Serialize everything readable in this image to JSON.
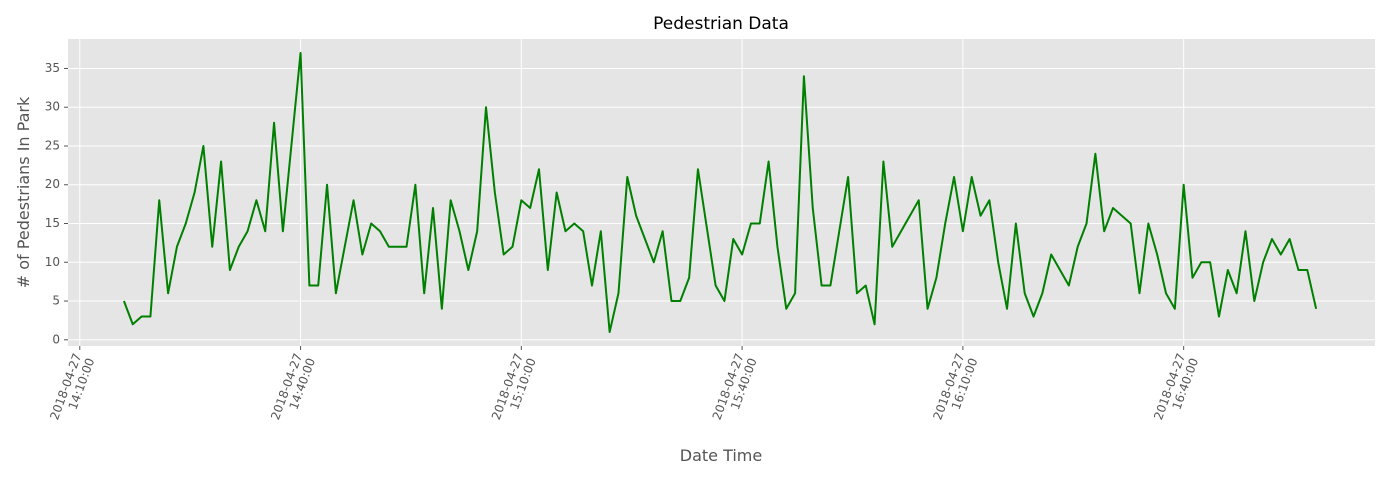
{
  "chart_data": {
    "type": "line",
    "title": "Pedestrian Data",
    "x_label": "Date Time",
    "y_label": "# of Pedestrians In Park",
    "x": [
      "2018-04-27T14:16:00",
      "2018-04-27T14:17:12",
      "2018-04-27T14:18:24",
      "2018-04-27T14:19:36",
      "2018-04-27T14:20:48",
      "2018-04-27T14:22:00",
      "2018-04-27T14:23:12",
      "2018-04-27T14:24:24",
      "2018-04-27T14:25:36",
      "2018-04-27T14:26:48",
      "2018-04-27T14:28:00",
      "2018-04-27T14:29:12",
      "2018-04-27T14:30:24",
      "2018-04-27T14:31:36",
      "2018-04-27T14:32:48",
      "2018-04-27T14:34:00",
      "2018-04-27T14:35:12",
      "2018-04-27T14:36:24",
      "2018-04-27T14:37:36",
      "2018-04-27T14:40:00",
      "2018-04-27T14:41:12",
      "2018-04-27T14:42:24",
      "2018-04-27T14:43:36",
      "2018-04-27T14:44:48",
      "2018-04-27T14:47:12",
      "2018-04-27T14:48:24",
      "2018-04-27T14:49:36",
      "2018-04-27T14:50:48",
      "2018-04-27T14:52:00",
      "2018-04-27T14:54:24",
      "2018-04-27T14:55:36",
      "2018-04-27T14:56:48",
      "2018-04-27T14:58:00",
      "2018-04-27T14:59:12",
      "2018-04-27T15:00:24",
      "2018-04-27T15:01:36",
      "2018-04-27T15:02:48",
      "2018-04-27T15:04:00",
      "2018-04-27T15:05:12",
      "2018-04-27T15:06:24",
      "2018-04-27T15:07:36",
      "2018-04-27T15:08:48",
      "2018-04-27T15:10:00",
      "2018-04-27T15:11:12",
      "2018-04-27T15:12:24",
      "2018-04-27T15:13:36",
      "2018-04-27T15:14:48",
      "2018-04-27T15:16:00",
      "2018-04-27T15:17:12",
      "2018-04-27T15:18:24",
      "2018-04-27T15:19:36",
      "2018-04-27T15:20:48",
      "2018-04-27T15:22:00",
      "2018-04-27T15:23:12",
      "2018-04-27T15:24:24",
      "2018-04-27T15:25:36",
      "2018-04-27T15:28:00",
      "2018-04-27T15:29:12",
      "2018-04-27T15:30:24",
      "2018-04-27T15:31:36",
      "2018-04-27T15:32:48",
      "2018-04-27T15:34:00",
      "2018-04-27T15:36:24",
      "2018-04-27T15:37:36",
      "2018-04-27T15:38:48",
      "2018-04-27T15:40:00",
      "2018-04-27T15:41:12",
      "2018-04-27T15:42:24",
      "2018-04-27T15:43:36",
      "2018-04-27T15:44:48",
      "2018-04-27T15:46:00",
      "2018-04-27T15:47:12",
      "2018-04-27T15:48:24",
      "2018-04-27T15:49:36",
      "2018-04-27T15:50:48",
      "2018-04-27T15:52:00",
      "2018-04-27T15:54:24",
      "2018-04-27T15:55:36",
      "2018-04-27T15:56:48",
      "2018-04-27T15:58:00",
      "2018-04-27T15:59:12",
      "2018-04-27T16:00:24",
      "2018-04-27T16:04:00",
      "2018-04-27T16:05:12",
      "2018-04-27T16:06:24",
      "2018-04-27T16:07:36",
      "2018-04-27T16:08:48",
      "2018-04-27T16:10:00",
      "2018-04-27T16:11:12",
      "2018-04-27T16:12:24",
      "2018-04-27T16:13:36",
      "2018-04-27T16:14:48",
      "2018-04-27T16:16:00",
      "2018-04-27T16:17:12",
      "2018-04-27T16:18:24",
      "2018-04-27T16:19:36",
      "2018-04-27T16:20:48",
      "2018-04-27T16:22:00",
      "2018-04-27T16:24:24",
      "2018-04-27T16:25:36",
      "2018-04-27T16:26:48",
      "2018-04-27T16:28:00",
      "2018-04-27T16:29:12",
      "2018-04-27T16:30:24",
      "2018-04-27T16:32:48",
      "2018-04-27T16:34:00",
      "2018-04-27T16:35:12",
      "2018-04-27T16:36:24",
      "2018-04-27T16:37:36",
      "2018-04-27T16:38:48",
      "2018-04-27T16:40:00",
      "2018-04-27T16:41:12",
      "2018-04-27T16:42:24",
      "2018-04-27T16:43:36",
      "2018-04-27T16:44:48",
      "2018-04-27T16:46:00",
      "2018-04-27T16:47:12",
      "2018-04-27T16:48:24",
      "2018-04-27T16:49:36",
      "2018-04-27T16:50:48",
      "2018-04-27T16:52:00",
      "2018-04-27T16:53:12",
      "2018-04-27T16:54:24",
      "2018-04-27T16:55:36",
      "2018-04-27T16:56:48",
      "2018-04-27T16:58:00"
    ],
    "values": [
      5,
      2,
      3,
      3,
      18,
      6,
      12,
      15,
      19,
      25,
      12,
      23,
      9,
      12,
      14,
      18,
      14,
      28,
      14,
      37,
      7,
      7,
      20,
      6,
      18,
      11,
      15,
      14,
      12,
      12,
      20,
      6,
      17,
      4,
      18,
      14,
      9,
      14,
      30,
      19,
      11,
      12,
      18,
      17,
      22,
      9,
      19,
      14,
      15,
      14,
      7,
      14,
      1,
      6,
      21,
      16,
      10,
      14,
      5,
      5,
      8,
      22,
      7,
      5,
      13,
      11,
      15,
      15,
      23,
      12,
      4,
      6,
      34,
      17,
      7,
      7,
      21,
      6,
      7,
      2,
      23,
      12,
      18,
      4,
      8,
      15,
      21,
      14,
      21,
      16,
      18,
      10,
      4,
      15,
      6,
      3,
      6,
      11,
      7,
      12,
      15,
      24,
      14,
      17,
      15,
      6,
      15,
      11,
      6,
      4,
      20,
      8,
      10,
      10,
      3,
      9,
      6,
      14,
      5,
      10,
      13,
      11,
      13,
      9,
      9,
      4
    ],
    "color": "#008000",
    "xlim": [
      "2018-04-27T14:08:24",
      "2018-04-27T17:06:00"
    ],
    "xticks": [
      {
        "value": "2018-04-27T14:10:00",
        "label": "2018-04-27\n14:10:00"
      },
      {
        "value": "2018-04-27T14:40:00",
        "label": "2018-04-27\n14:40:00"
      },
      {
        "value": "2018-04-27T15:10:00",
        "label": "2018-04-27\n15:10:00"
      },
      {
        "value": "2018-04-27T15:40:00",
        "label": "2018-04-27\n15:40:00"
      },
      {
        "value": "2018-04-27T16:10:00",
        "label": "2018-04-27\n16:10:00"
      },
      {
        "value": "2018-04-27T16:40:00",
        "label": "2018-04-27\n16:40:00"
      }
    ],
    "ylim": [
      -0.8,
      38.8
    ],
    "yticks": [
      0,
      5,
      10,
      15,
      20,
      25,
      30,
      35
    ],
    "grid": true
  }
}
